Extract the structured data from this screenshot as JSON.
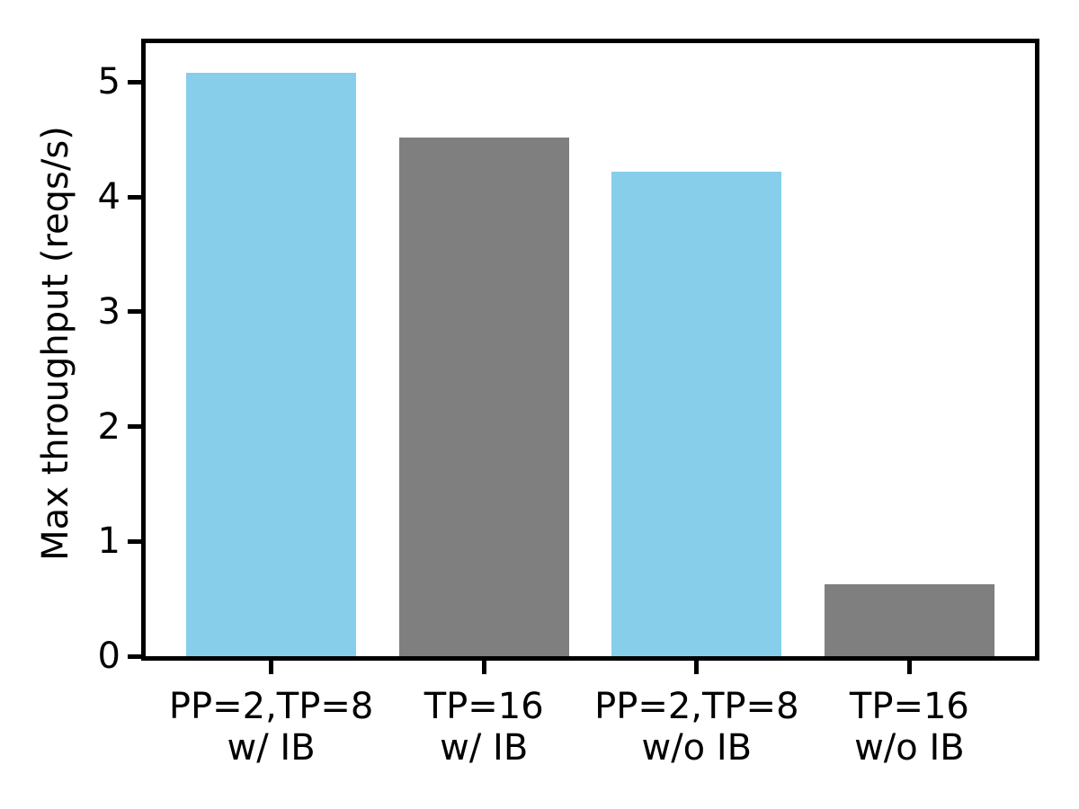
{
  "chart_data": {
    "type": "bar",
    "title": "",
    "xlabel": "",
    "ylabel": "Max throughput (reqs/s)",
    "categories": [
      "PP=2,TP=8\nw/ IB",
      "TP=16\nw/ IB",
      "PP=2,TP=8\nw/o IB",
      "TP=16\nw/o IB"
    ],
    "values": [
      5.08,
      4.52,
      4.22,
      0.63
    ],
    "bar_colors": [
      "#87ceeb",
      "#7f7f7f",
      "#87ceeb",
      "#7f7f7f"
    ],
    "yticks": [
      0,
      1,
      2,
      3,
      4,
      5
    ],
    "ylim": [
      0,
      5.34
    ],
    "xlim": [
      -0.59,
      3.59
    ],
    "bar_width_units": 0.8,
    "grid": false,
    "legend": null,
    "colors": {
      "skyblue": "#87ceeb",
      "gray": "#7f7f7f",
      "axis": "#000000",
      "background": "#ffffff"
    }
  }
}
